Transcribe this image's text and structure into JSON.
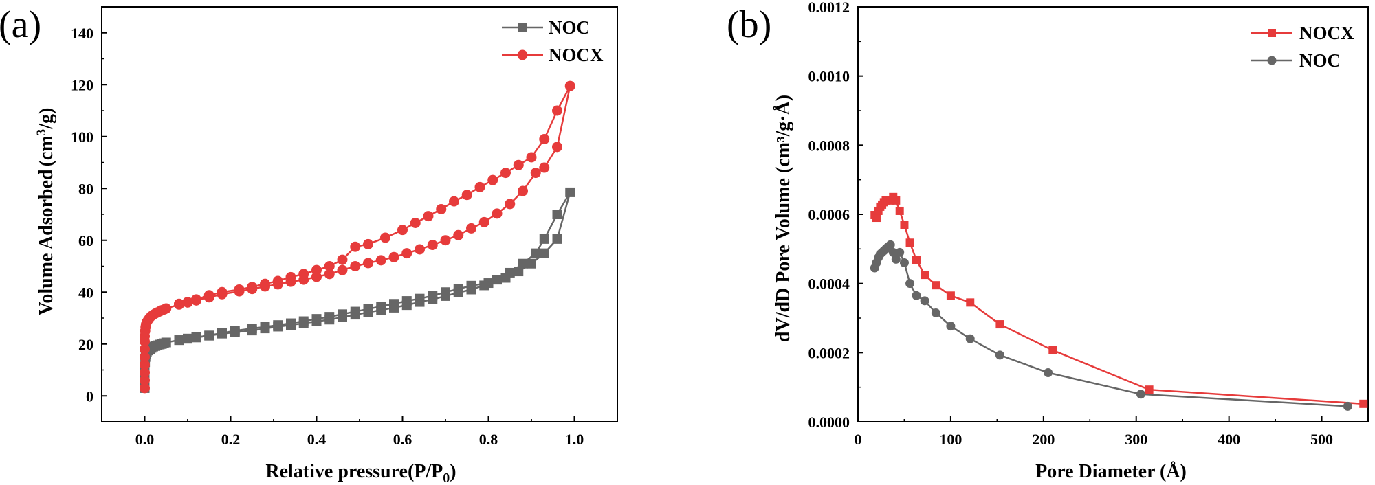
{
  "chart_data": [
    {
      "id": "a",
      "type": "line",
      "panel_label": "(a)",
      "xlabel": "Relative pressure(P/P",
      "xlabel_sub": "0",
      "xlabel_tail": ")",
      "ylabel_main": "Volume Adsorbed",
      "ylabel_unit_open": "(cm",
      "ylabel_unit_sup": "3",
      "ylabel_unit_close": "/g)",
      "xlim": [
        -0.1,
        1.1
      ],
      "ylim": [
        -10,
        150
      ],
      "xticks": [
        "0.0",
        "0.2",
        "0.4",
        "0.6",
        "0.8",
        "1.0"
      ],
      "yticks": [
        "0",
        "20",
        "40",
        "60",
        "80",
        "100",
        "120",
        "140"
      ],
      "legend_position": "top-right",
      "series": [
        {
          "name": "NOC",
          "color": "#666666",
          "marker": "square",
          "x": [
            0.0,
            0.0,
            0.0,
            0.0,
            0.0,
            0.001,
            0.002,
            0.003,
            0.005,
            0.008,
            0.012,
            0.016,
            0.02,
            0.025,
            0.03,
            0.035,
            0.04,
            0.045,
            0.05,
            0.08,
            0.1,
            0.12,
            0.15,
            0.18,
            0.21,
            0.25,
            0.28,
            0.31,
            0.34,
            0.37,
            0.4,
            0.43,
            0.46,
            0.49,
            0.52,
            0.55,
            0.58,
            0.61,
            0.64,
            0.67,
            0.7,
            0.73,
            0.76,
            0.79,
            0.82,
            0.85,
            0.88,
            0.91,
            0.93,
            0.96,
            0.99,
            0.96,
            0.93,
            0.9,
            0.87,
            0.84,
            0.8,
            0.76,
            0.73,
            0.7,
            0.67,
            0.64,
            0.61,
            0.58,
            0.55,
            0.52,
            0.49,
            0.46,
            0.43,
            0.4,
            0.37,
            0.34,
            0.31,
            0.28,
            0.25,
            0.21,
            0.18,
            0.15,
            0.12,
            0.1,
            0.08
          ],
          "y": [
            3,
            5,
            7,
            9,
            11,
            13,
            15,
            16,
            17,
            17.5,
            18,
            18.5,
            19,
            19.2,
            19.5,
            19.8,
            20,
            20.3,
            20.6,
            21.5,
            22,
            22.5,
            23.2,
            24,
            24.5,
            25.2,
            26,
            26.7,
            27.3,
            28,
            28.7,
            29.4,
            30.3,
            31.3,
            32.2,
            33.1,
            34,
            35,
            36.2,
            37.2,
            38.5,
            39.8,
            41,
            42.6,
            44.8,
            47.5,
            51,
            55,
            60.5,
            70,
            78.5,
            60.5,
            55,
            51,
            48,
            45.5,
            43.5,
            42.5,
            41.2,
            40,
            38.6,
            37.5,
            36.6,
            35.5,
            34.5,
            33.5,
            32.5,
            31.5,
            30.5,
            29.7,
            28.8,
            28,
            27.3,
            26.6,
            26,
            25.1,
            24.2,
            23.3,
            22.6,
            22.1,
            21.5
          ]
        },
        {
          "name": "NOCX",
          "color": "#e63b3b",
          "marker": "circle",
          "x": [
            0.0,
            0.0,
            0.0,
            0.0,
            0.0,
            0.0,
            0.0,
            0.0,
            0.001,
            0.002,
            0.003,
            0.005,
            0.008,
            0.011,
            0.015,
            0.02,
            0.025,
            0.03,
            0.035,
            0.04,
            0.045,
            0.05,
            0.08,
            0.1,
            0.12,
            0.15,
            0.18,
            0.22,
            0.25,
            0.28,
            0.31,
            0.34,
            0.37,
            0.4,
            0.43,
            0.46,
            0.49,
            0.52,
            0.55,
            0.58,
            0.61,
            0.64,
            0.67,
            0.7,
            0.73,
            0.76,
            0.79,
            0.82,
            0.85,
            0.88,
            0.91,
            0.93,
            0.96,
            0.99,
            0.96,
            0.93,
            0.9,
            0.87,
            0.84,
            0.81,
            0.78,
            0.75,
            0.72,
            0.69,
            0.66,
            0.63,
            0.6,
            0.56,
            0.52,
            0.49,
            0.46,
            0.43,
            0.4,
            0.37,
            0.34,
            0.31,
            0.28,
            0.25,
            0.22,
            0.18,
            0.15,
            0.12,
            0.1,
            0.08
          ],
          "y": [
            3,
            6,
            9,
            12,
            15,
            18,
            21,
            23,
            25,
            26.5,
            27.5,
            28.5,
            29.3,
            30,
            30.7,
            31.3,
            31.8,
            32.2,
            32.6,
            33,
            33.3,
            33.7,
            35.2,
            36,
            36.8,
            38,
            39.2,
            40.3,
            41.2,
            42.2,
            43,
            44,
            44.8,
            45.9,
            47,
            48.5,
            50,
            51.2,
            52.3,
            53.5,
            55,
            56.5,
            58.2,
            60,
            62,
            64.6,
            67,
            70.3,
            74,
            79,
            86,
            88,
            96,
            119.5,
            110,
            99,
            92,
            89,
            86,
            83.2,
            80.5,
            77.5,
            75,
            72,
            69.3,
            66.7,
            64,
            61,
            58.5,
            57.5,
            52.5,
            50,
            48.5,
            47,
            45.8,
            44.3,
            43.2,
            42,
            41,
            40,
            38.8,
            37.2,
            36.2,
            35.5
          ]
        }
      ]
    },
    {
      "id": "b",
      "type": "line",
      "panel_label": "(b)",
      "xlabel": "Pore Diameter (Å)",
      "xlabel_tail": ")",
      "ylabel": "dV/dD Pore Volume (cm³/g·Å)",
      "xlim": [
        0,
        550
      ],
      "ylim": [
        0,
        0.0012
      ],
      "xticks": [
        "0",
        "100",
        "200",
        "300",
        "400",
        "500"
      ],
      "yticks": [
        "0.0000",
        "0.0002",
        "0.0004",
        "0.0006",
        "0.0008",
        "0.0010",
        "0.0012"
      ],
      "legend_position": "top-right",
      "series": [
        {
          "name": "NOCX",
          "color": "#e63b3b",
          "marker": "square",
          "x": [
            18,
            20,
            22,
            24,
            26,
            28,
            30,
            32,
            35,
            38,
            41,
            45,
            50,
            56,
            63,
            72,
            84,
            100,
            121,
            153,
            210,
            314,
            545
          ],
          "y": [
            0.000598,
            0.00059,
            0.00061,
            0.000622,
            0.000628,
            0.000635,
            0.00064,
            0.000641,
            0.00064,
            0.00065,
            0.00064,
            0.00061,
            0.00057,
            0.000518,
            0.000468,
            0.000425,
            0.000395,
            0.000365,
            0.000345,
            0.000282,
            0.000207,
            9.3e-05,
            5.2e-05
          ]
        },
        {
          "name": "NOC",
          "color": "#666666",
          "marker": "circle",
          "x": [
            18,
            20,
            22,
            24,
            26,
            28,
            30,
            32,
            35,
            38,
            41,
            45,
            50,
            56,
            63,
            72,
            84,
            100,
            121,
            153,
            205,
            305,
            528
          ],
          "y": [
            0.000445,
            0.00046,
            0.000475,
            0.000485,
            0.00049,
            0.000495,
            0.0005,
            0.000505,
            0.000512,
            0.00049,
            0.00047,
            0.00049,
            0.00046,
            0.0004,
            0.000365,
            0.00035,
            0.000315,
            0.000277,
            0.00024,
            0.000193,
            0.000142,
            8e-05,
            4.5e-05
          ]
        }
      ]
    }
  ]
}
